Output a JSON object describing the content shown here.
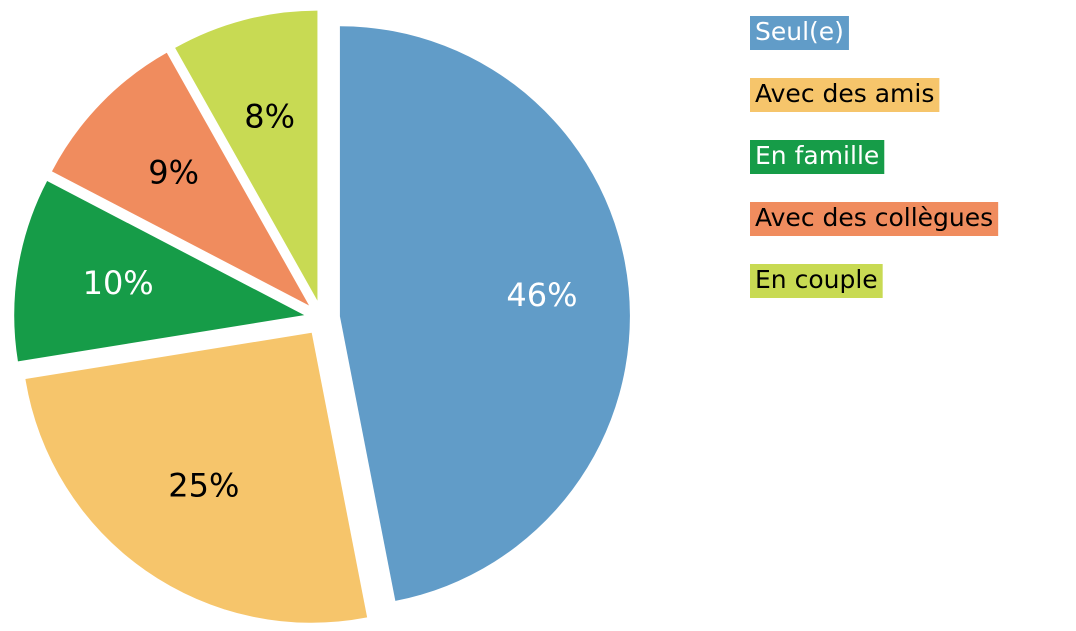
{
  "chart_data": {
    "type": "pie",
    "categories": [
      "Seul(e)",
      "Avec des amis",
      "En famille",
      "Avec des collègues",
      "En couple"
    ],
    "values": [
      46,
      25,
      10,
      9,
      8
    ],
    "value_labels": [
      "46%",
      "25%",
      "10%",
      "9%",
      "8%"
    ],
    "colors": [
      "#619cc8",
      "#f6c56b",
      "#169c48",
      "#f08c5e",
      "#c8da53"
    ],
    "legend": "right"
  }
}
